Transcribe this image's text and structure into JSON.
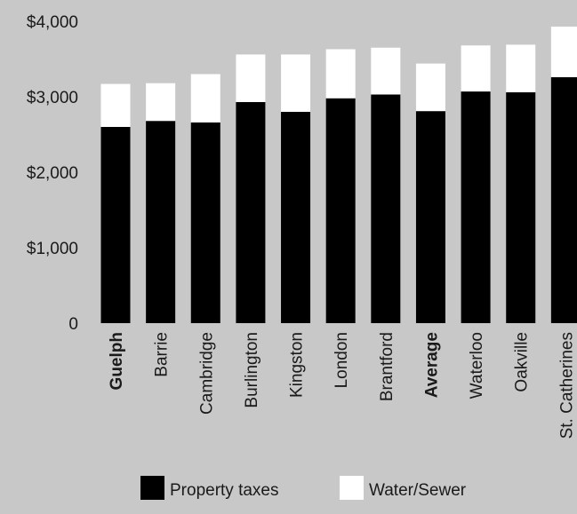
{
  "chart_data": {
    "type": "bar",
    "stacked": true,
    "categories": [
      "Guelph",
      "Barrie",
      "Cambridge",
      "Burlington",
      "Kingston",
      "London",
      "Brantford",
      "Average",
      "Waterloo",
      "Oakville",
      "St. Catherines"
    ],
    "bold_categories": [
      "Guelph",
      "Average"
    ],
    "series": [
      {
        "name": "Property taxes",
        "color": "#000000",
        "values": [
          2600,
          2680,
          2660,
          2930,
          2800,
          2980,
          3030,
          2810,
          3070,
          3060,
          3260
        ]
      },
      {
        "name": "Water/Sewer",
        "color": "#ffffff",
        "values": [
          570,
          500,
          640,
          630,
          760,
          650,
          620,
          630,
          610,
          630,
          670
        ]
      }
    ],
    "ylim": [
      0,
      4000
    ],
    "yticks": [
      0,
      1000,
      2000,
      3000,
      4000
    ],
    "ytick_labels": [
      "0",
      "$1,000",
      "$2,000",
      "$3,000",
      "$4,000"
    ],
    "grid": false,
    "legend_position": "bottom",
    "background": "#c8c8c8"
  }
}
